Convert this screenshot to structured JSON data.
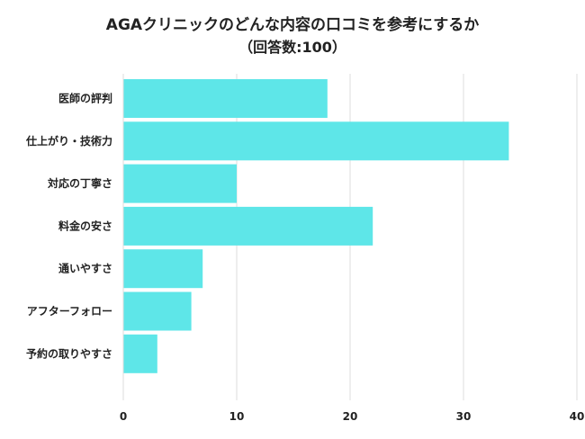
{
  "chart_data": {
    "type": "bar",
    "orientation": "horizontal",
    "title": "AGAクリニックのどんな内容の口コミを参考にするか",
    "subtitle": "（回答数:100）",
    "categories": [
      "医師の評判",
      "仕上がり・技術力",
      "対応の丁寧さ",
      "料金の安さ",
      "通いやすさ",
      "アフターフォロー",
      "予約の取りやすさ"
    ],
    "values": [
      18,
      34,
      10,
      22,
      7,
      6,
      3
    ],
    "xlim": [
      0,
      40
    ],
    "xticks": [
      "0",
      "10",
      "20",
      "30",
      "40"
    ],
    "xlabel": "",
    "ylabel": "",
    "grid": true,
    "legend": "none",
    "colors": {
      "bar": "#5ee6e8",
      "grid": "#dddddd",
      "text": "#222222"
    }
  }
}
